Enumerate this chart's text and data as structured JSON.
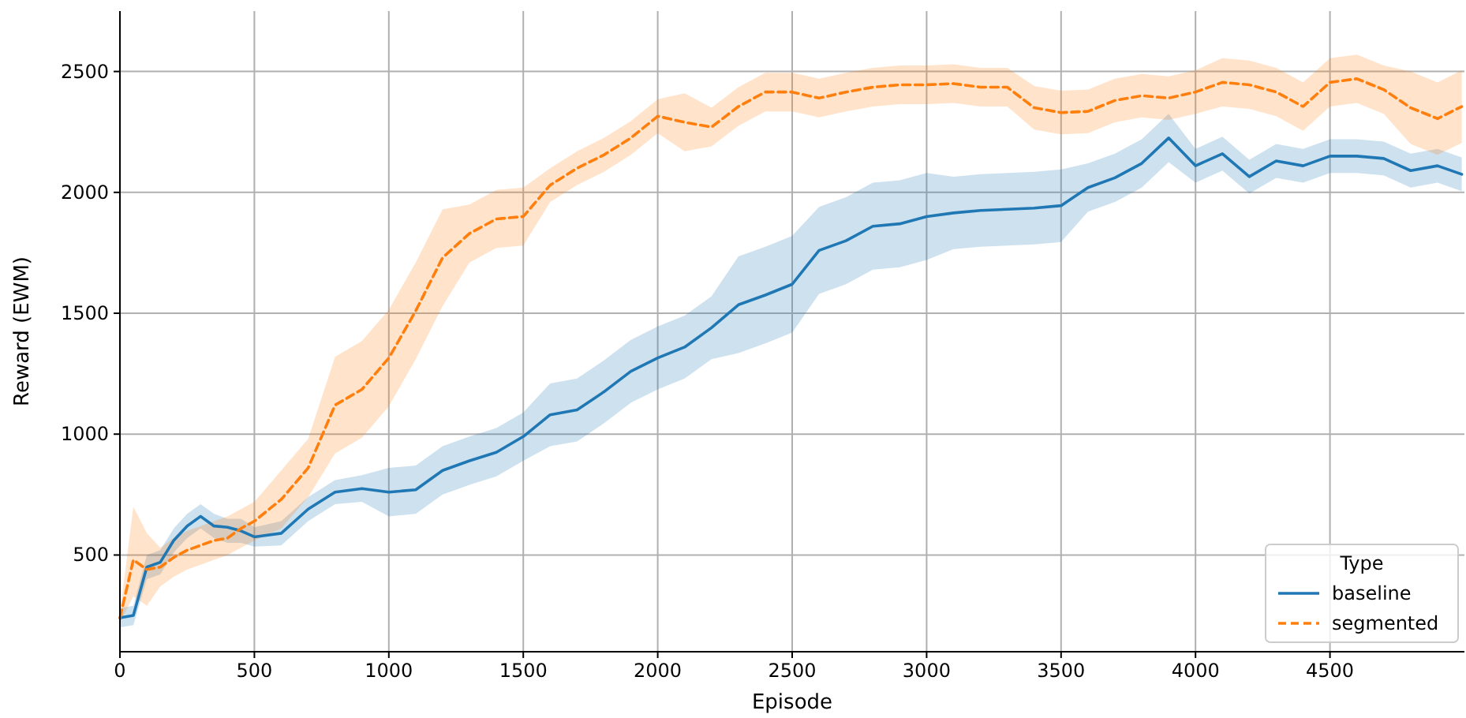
{
  "chart_data": {
    "type": "line",
    "xlabel": "Episode",
    "ylabel": "Reward (EWM)",
    "legend_title": "Type",
    "legend": "bottom right",
    "grid": true,
    "x": [
      0,
      50,
      100,
      150,
      200,
      250,
      300,
      350,
      400,
      450,
      500,
      600,
      700,
      800,
      900,
      1000,
      1100,
      1200,
      1300,
      1400,
      1500,
      1600,
      1700,
      1800,
      1900,
      2000,
      2100,
      2200,
      2300,
      2400,
      2500,
      2600,
      2700,
      2800,
      2900,
      3000,
      3100,
      3200,
      3300,
      3400,
      3500,
      3600,
      3700,
      3800,
      3900,
      4000,
      4100,
      4200,
      4300,
      4400,
      4500,
      4600,
      4700,
      4800,
      4900,
      4990
    ],
    "xlim": [
      0,
      5000
    ],
    "xticks": [
      0,
      500,
      1000,
      1500,
      2000,
      2500,
      3000,
      3500,
      4000,
      4500
    ],
    "ylim": [
      100,
      2750
    ],
    "yticks": [
      500,
      1000,
      1500,
      2000,
      2500
    ],
    "series": [
      {
        "name": "baseline",
        "color": "#1f77b4",
        "line_style": "solid",
        "values": [
          240,
          250,
          450,
          470,
          560,
          620,
          660,
          620,
          615,
          600,
          575,
          590,
          690,
          760,
          775,
          760,
          770,
          850,
          890,
          925,
          990,
          1080,
          1100,
          1175,
          1260,
          1315,
          1360,
          1440,
          1535,
          1575,
          1620,
          1760,
          1800,
          1860,
          1870,
          1900,
          1915,
          1925,
          1930,
          1935,
          1945,
          2020,
          2060,
          2120,
          2225,
          2110,
          2160,
          2065,
          2130,
          2110,
          2150,
          2150,
          2140,
          2090,
          2110,
          2075
        ],
        "lower": [
          200,
          210,
          400,
          420,
          510,
          570,
          610,
          570,
          550,
          550,
          535,
          540,
          640,
          710,
          720,
          660,
          670,
          750,
          790,
          825,
          890,
          950,
          970,
          1045,
          1130,
          1185,
          1230,
          1310,
          1335,
          1375,
          1420,
          1580,
          1620,
          1680,
          1690,
          1720,
          1765,
          1775,
          1780,
          1785,
          1795,
          1920,
          1960,
          2020,
          2125,
          2040,
          2090,
          1995,
          2060,
          2040,
          2080,
          2080,
          2070,
          2020,
          2040,
          2005
        ],
        "upper": [
          280,
          290,
          500,
          520,
          610,
          670,
          710,
          670,
          650,
          650,
          615,
          640,
          740,
          810,
          830,
          860,
          870,
          950,
          990,
          1025,
          1090,
          1210,
          1230,
          1305,
          1390,
          1445,
          1490,
          1570,
          1735,
          1775,
          1820,
          1940,
          1980,
          2040,
          2050,
          2080,
          2065,
          2075,
          2080,
          2085,
          2095,
          2120,
          2160,
          2220,
          2325,
          2180,
          2230,
          2135,
          2200,
          2180,
          2220,
          2220,
          2210,
          2160,
          2180,
          2145
        ]
      },
      {
        "name": "segmented",
        "color": "#ff7f0e",
        "line_style": "dashed",
        "values": [
          240,
          480,
          440,
          450,
          490,
          520,
          540,
          560,
          570,
          610,
          640,
          730,
          860,
          1120,
          1185,
          1315,
          1510,
          1730,
          1830,
          1890,
          1900,
          2030,
          2100,
          2155,
          2225,
          2315,
          2290,
          2270,
          2355,
          2415,
          2415,
          2390,
          2415,
          2435,
          2445,
          2445,
          2450,
          2435,
          2435,
          2350,
          2330,
          2335,
          2380,
          2400,
          2390,
          2415,
          2455,
          2445,
          2415,
          2355,
          2455,
          2470,
          2425,
          2350,
          2305,
          2355
        ],
        "lower": [
          220,
          330,
          290,
          370,
          410,
          440,
          460,
          480,
          500,
          530,
          560,
          610,
          740,
          920,
          985,
          1115,
          1310,
          1530,
          1710,
          1770,
          1780,
          1960,
          2030,
          2085,
          2155,
          2245,
          2170,
          2190,
          2275,
          2335,
          2335,
          2310,
          2335,
          2355,
          2365,
          2365,
          2370,
          2355,
          2355,
          2260,
          2240,
          2245,
          2290,
          2310,
          2300,
          2325,
          2355,
          2345,
          2315,
          2255,
          2355,
          2370,
          2325,
          2200,
          2155,
          2205
        ],
        "upper": [
          260,
          700,
          590,
          530,
          570,
          600,
          620,
          640,
          660,
          690,
          720,
          850,
          980,
          1320,
          1385,
          1515,
          1710,
          1930,
          1950,
          2010,
          2020,
          2100,
          2170,
          2225,
          2295,
          2385,
          2410,
          2350,
          2435,
          2495,
          2495,
          2470,
          2495,
          2515,
          2525,
          2525,
          2530,
          2515,
          2515,
          2440,
          2420,
          2425,
          2470,
          2490,
          2480,
          2505,
          2555,
          2545,
          2515,
          2455,
          2555,
          2570,
          2525,
          2500,
          2455,
          2505
        ]
      }
    ]
  }
}
